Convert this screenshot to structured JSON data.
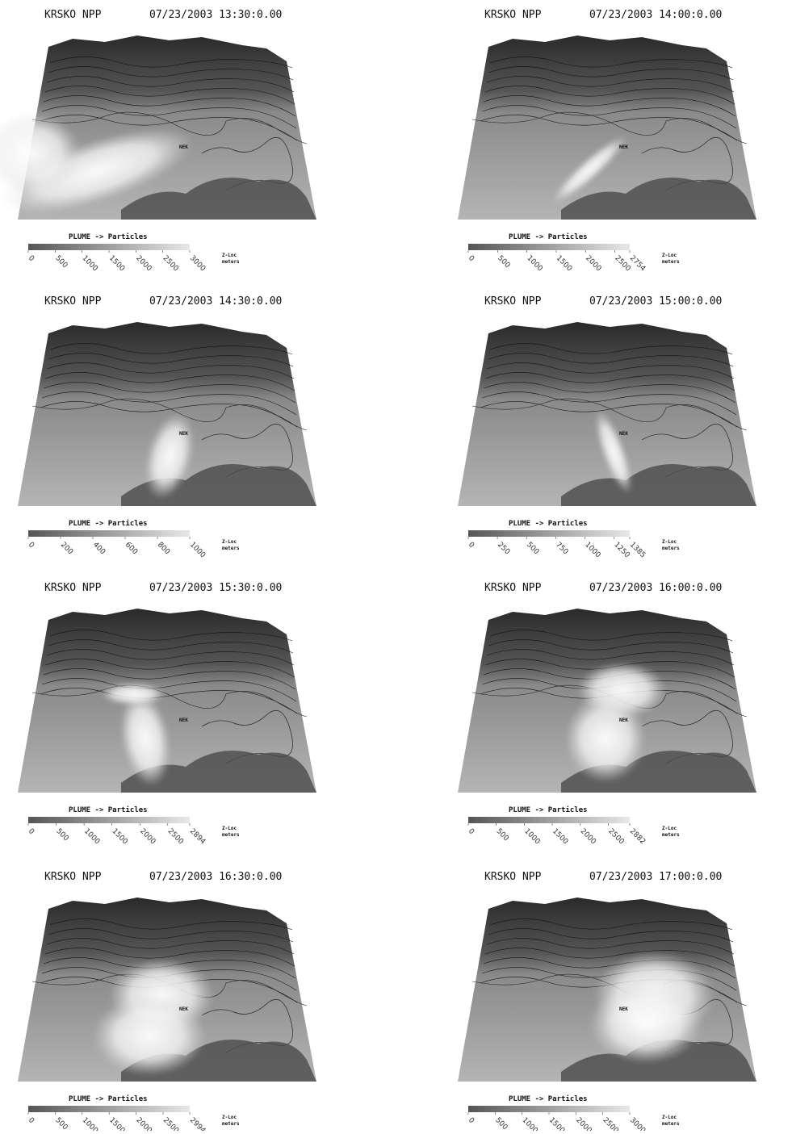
{
  "panels": [
    {
      "site": "KRSKO NPP",
      "timestamp": "07/23/2003 13:30:0.00",
      "site_label": "NEK",
      "legend_title": "PLUME -> Particles",
      "colorbar_ticks": [
        0,
        500,
        1000,
        1500,
        2000,
        2500,
        3000
      ],
      "axis_label": "Z-Loc",
      "unit": "meters"
    },
    {
      "site": "KRSKO NPP",
      "timestamp": "07/23/2003 14:00:0.00",
      "site_label": "NEK",
      "legend_title": "PLUME -> Particles",
      "colorbar_ticks": [
        0,
        500,
        1000,
        1500,
        2000,
        2500,
        2754
      ],
      "axis_label": "Z-Loc",
      "unit": "meters"
    },
    {
      "site": "KRSKO NPP",
      "timestamp": "07/23/2003 14:30:0.00",
      "site_label": "NEK",
      "legend_title": "PLUME -> Particles",
      "colorbar_ticks": [
        0,
        200,
        400,
        600,
        800,
        1000
      ],
      "axis_label": "Z-Loc",
      "unit": "meters"
    },
    {
      "site": "KRSKO NPP",
      "timestamp": "07/23/2003 15:00:0.00",
      "site_label": "NEK",
      "legend_title": "PLUME -> Particles",
      "colorbar_ticks": [
        0,
        250,
        500,
        750,
        1000,
        1250,
        1385
      ],
      "axis_label": "Z-Loc",
      "unit": "meters"
    },
    {
      "site": "KRSKO NPP",
      "timestamp": "07/23/2003 15:30:0.00",
      "site_label": "NEK",
      "legend_title": "PLUME -> Particles",
      "colorbar_ticks": [
        0,
        500,
        1000,
        1500,
        2000,
        2500,
        2894
      ],
      "axis_label": "Z-Loc",
      "unit": "meters"
    },
    {
      "site": "KRSKO NPP",
      "timestamp": "07/23/2003 16:00:0.00",
      "site_label": "NEK",
      "legend_title": "PLUME -> Particles",
      "colorbar_ticks": [
        0,
        500,
        1000,
        1500,
        2000,
        2500,
        2882
      ],
      "axis_label": "Z-Loc",
      "unit": "meters"
    },
    {
      "site": "KRSKO NPP",
      "timestamp": "07/23/2003 16:30:0.00",
      "site_label": "NEK",
      "legend_title": "PLUME -> Particles",
      "colorbar_ticks": [
        0,
        500,
        1000,
        1500,
        2000,
        2500,
        2994
      ],
      "axis_label": "Z-Loc",
      "unit": "meters"
    },
    {
      "site": "KRSKO NPP",
      "timestamp": "07/23/2003 17:00:0.00",
      "site_label": "NEK",
      "legend_title": "PLUME -> Particles",
      "colorbar_ticks": [
        0,
        500,
        1000,
        1500,
        2000,
        2500,
        3000
      ],
      "axis_label": "Z-Loc",
      "unit": "meters"
    }
  ]
}
